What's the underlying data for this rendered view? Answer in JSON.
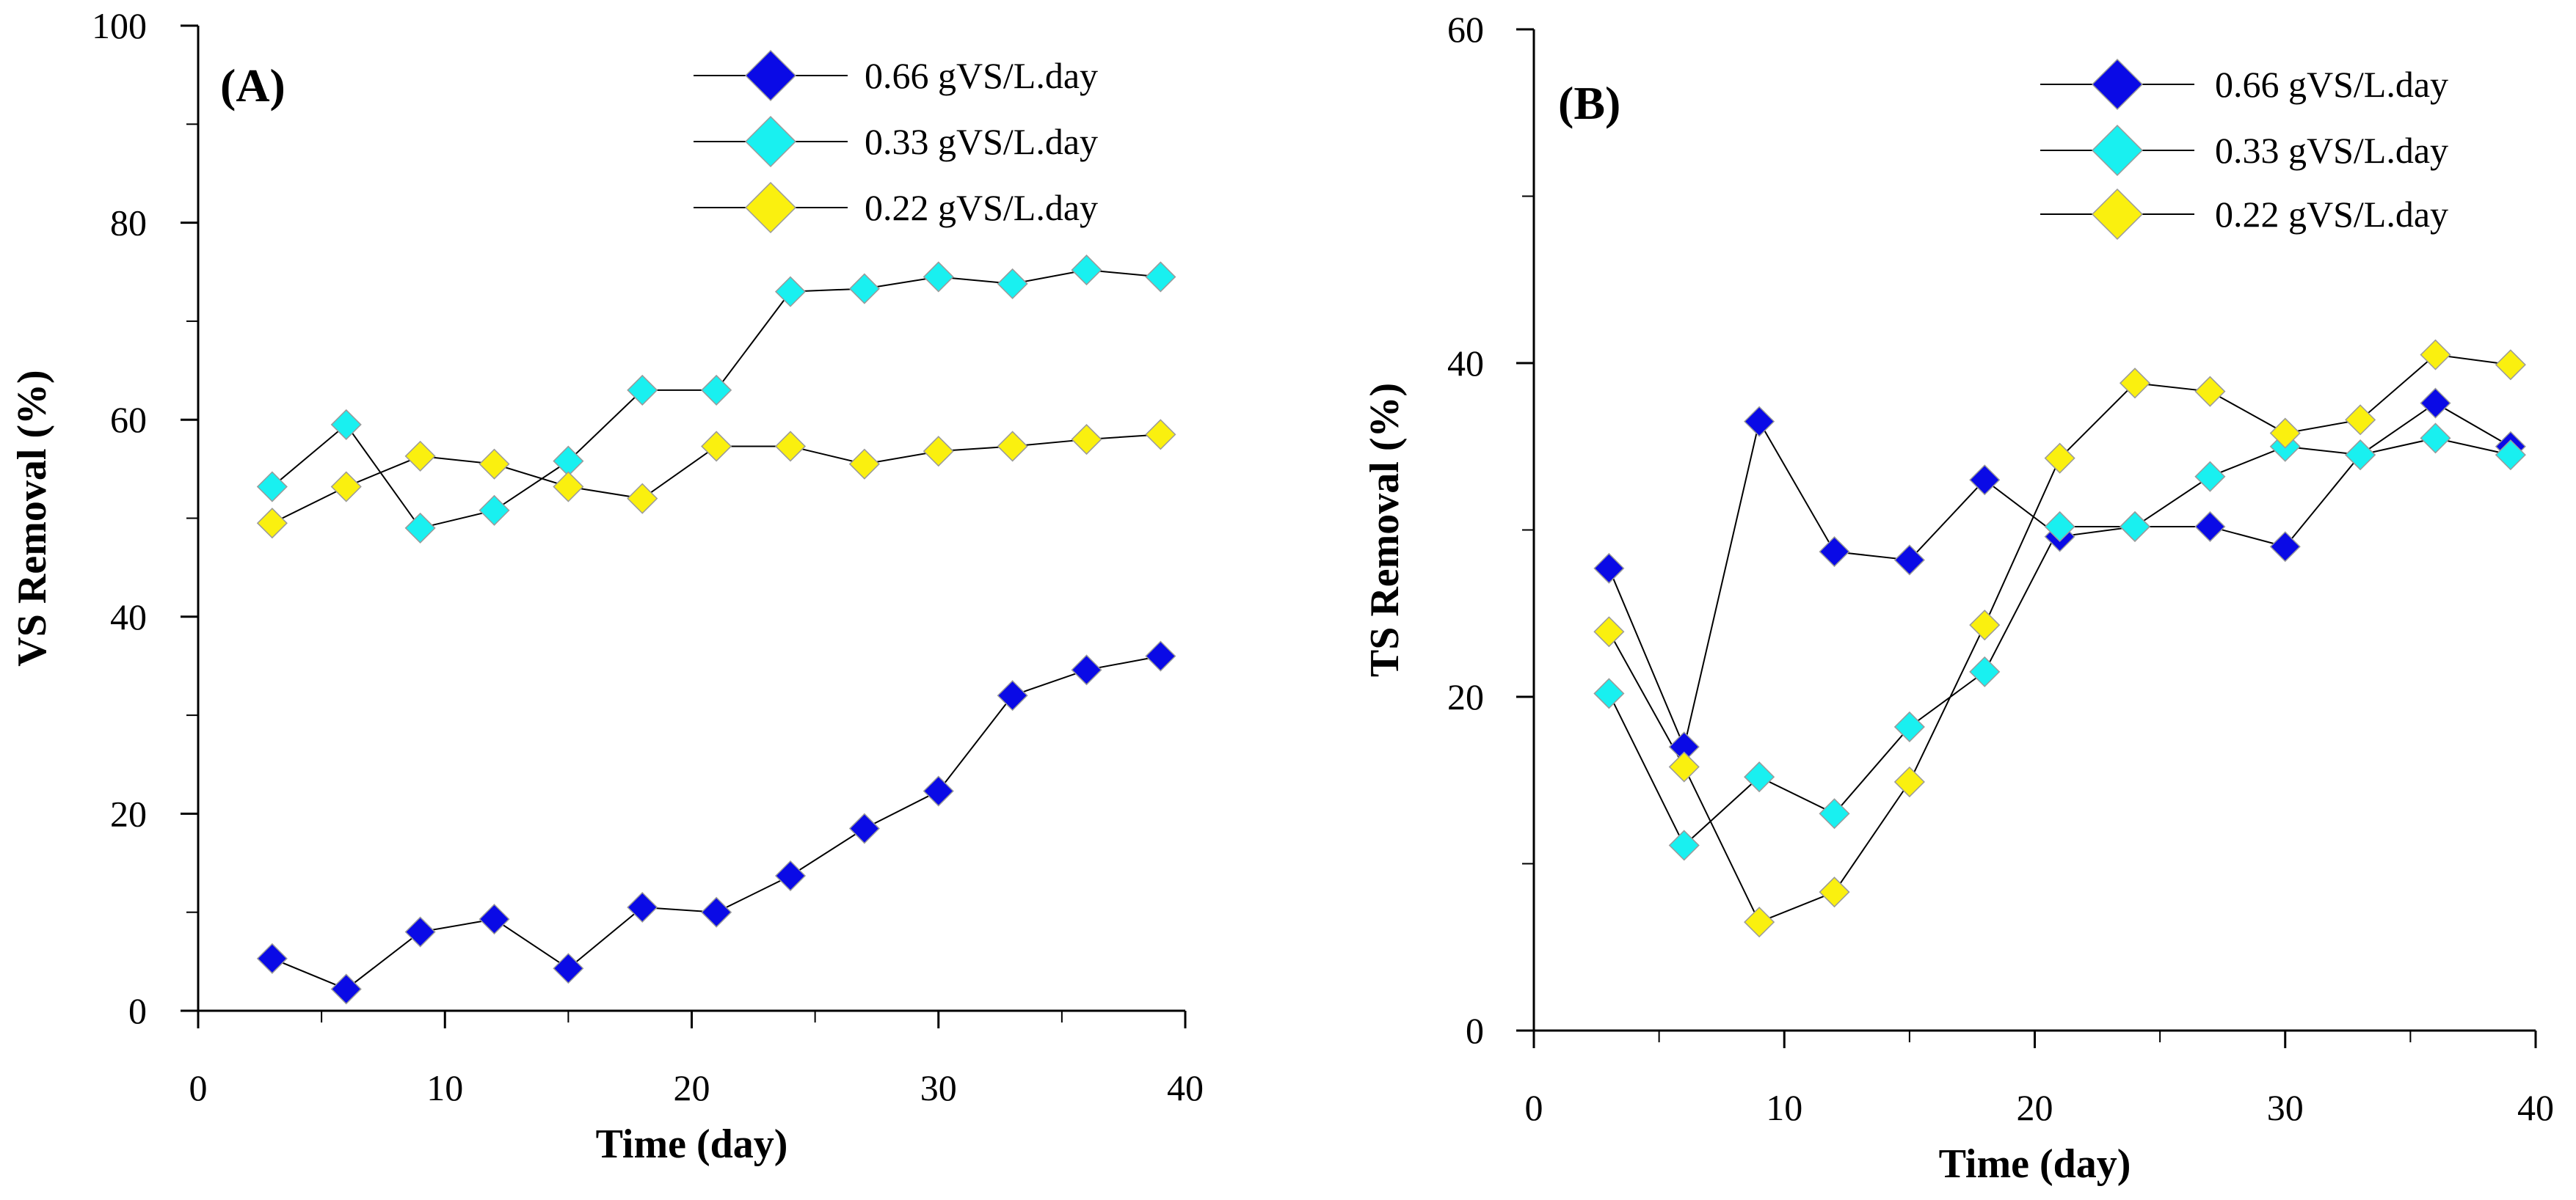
{
  "colors": {
    "series_066": "#0A0AE6",
    "series_033": "#19F0F0",
    "series_022": "#FAF00F",
    "marker_stroke": "#9a9a9a",
    "line": "#000000"
  },
  "chart_data": [
    {
      "type": "line",
      "panel_label": "(A)",
      "xlabel": "Time (day)",
      "ylabel": "VS Removal (%)",
      "xlim": [
        0,
        40
      ],
      "ylim": [
        0,
        100
      ],
      "x_ticks": [
        0,
        10,
        20,
        30,
        40
      ],
      "y_ticks": [
        0,
        20,
        40,
        60,
        80,
        100
      ],
      "legend_position": "top-right",
      "x": [
        3,
        6,
        9,
        12,
        15,
        18,
        21,
        24,
        27,
        30,
        33,
        36,
        39
      ],
      "series": [
        {
          "name": "0.66 gVS/L.day",
          "color_key": "series_066",
          "values": [
            5.3,
            2.2,
            8.0,
            9.3,
            4.3,
            10.5,
            10.0,
            13.7,
            18.5,
            22.3,
            32.0,
            34.6,
            36.0
          ]
        },
        {
          "name": "0.33 gVS/L.day",
          "color_key": "series_033",
          "values": [
            53.2,
            59.5,
            49.0,
            50.8,
            55.8,
            63.0,
            63.0,
            73.0,
            73.3,
            74.5,
            73.8,
            75.2,
            74.5
          ]
        },
        {
          "name": "0.22 gVS/L.day",
          "color_key": "series_022",
          "values": [
            49.5,
            53.2,
            56.3,
            55.5,
            53.2,
            52.0,
            57.3,
            57.3,
            55.5,
            56.8,
            57.3,
            58.0,
            58.5
          ]
        }
      ]
    },
    {
      "type": "line",
      "panel_label": "(B)",
      "xlabel": "Time (day)",
      "ylabel": "TS Removal (%)",
      "xlim": [
        0,
        40
      ],
      "ylim": [
        0,
        60
      ],
      "x_ticks": [
        0,
        10,
        20,
        30,
        40
      ],
      "y_ticks": [
        0,
        20,
        40,
        60
      ],
      "legend_position": "top-right",
      "x": [
        3,
        6,
        9,
        12,
        15,
        18,
        21,
        24,
        27,
        30,
        33,
        36,
        39
      ],
      "series": [
        {
          "name": "0.66 gVS/L.day",
          "color_key": "series_066",
          "values": [
            27.7,
            17.0,
            36.5,
            28.7,
            28.2,
            33.0,
            29.6,
            30.2,
            30.2,
            29.0,
            34.5,
            37.6,
            35.0
          ]
        },
        {
          "name": "0.33 gVS/L.day",
          "color_key": "series_033",
          "values": [
            20.2,
            11.1,
            15.2,
            13.0,
            18.2,
            21.5,
            30.2,
            30.2,
            33.2,
            35.0,
            34.5,
            35.5,
            34.5
          ]
        },
        {
          "name": "0.22 gVS/L.day",
          "color_key": "series_022",
          "values": [
            23.9,
            15.8,
            6.5,
            8.3,
            14.9,
            24.3,
            34.3,
            38.8,
            38.3,
            35.8,
            36.6,
            40.5,
            39.9
          ]
        }
      ]
    }
  ]
}
